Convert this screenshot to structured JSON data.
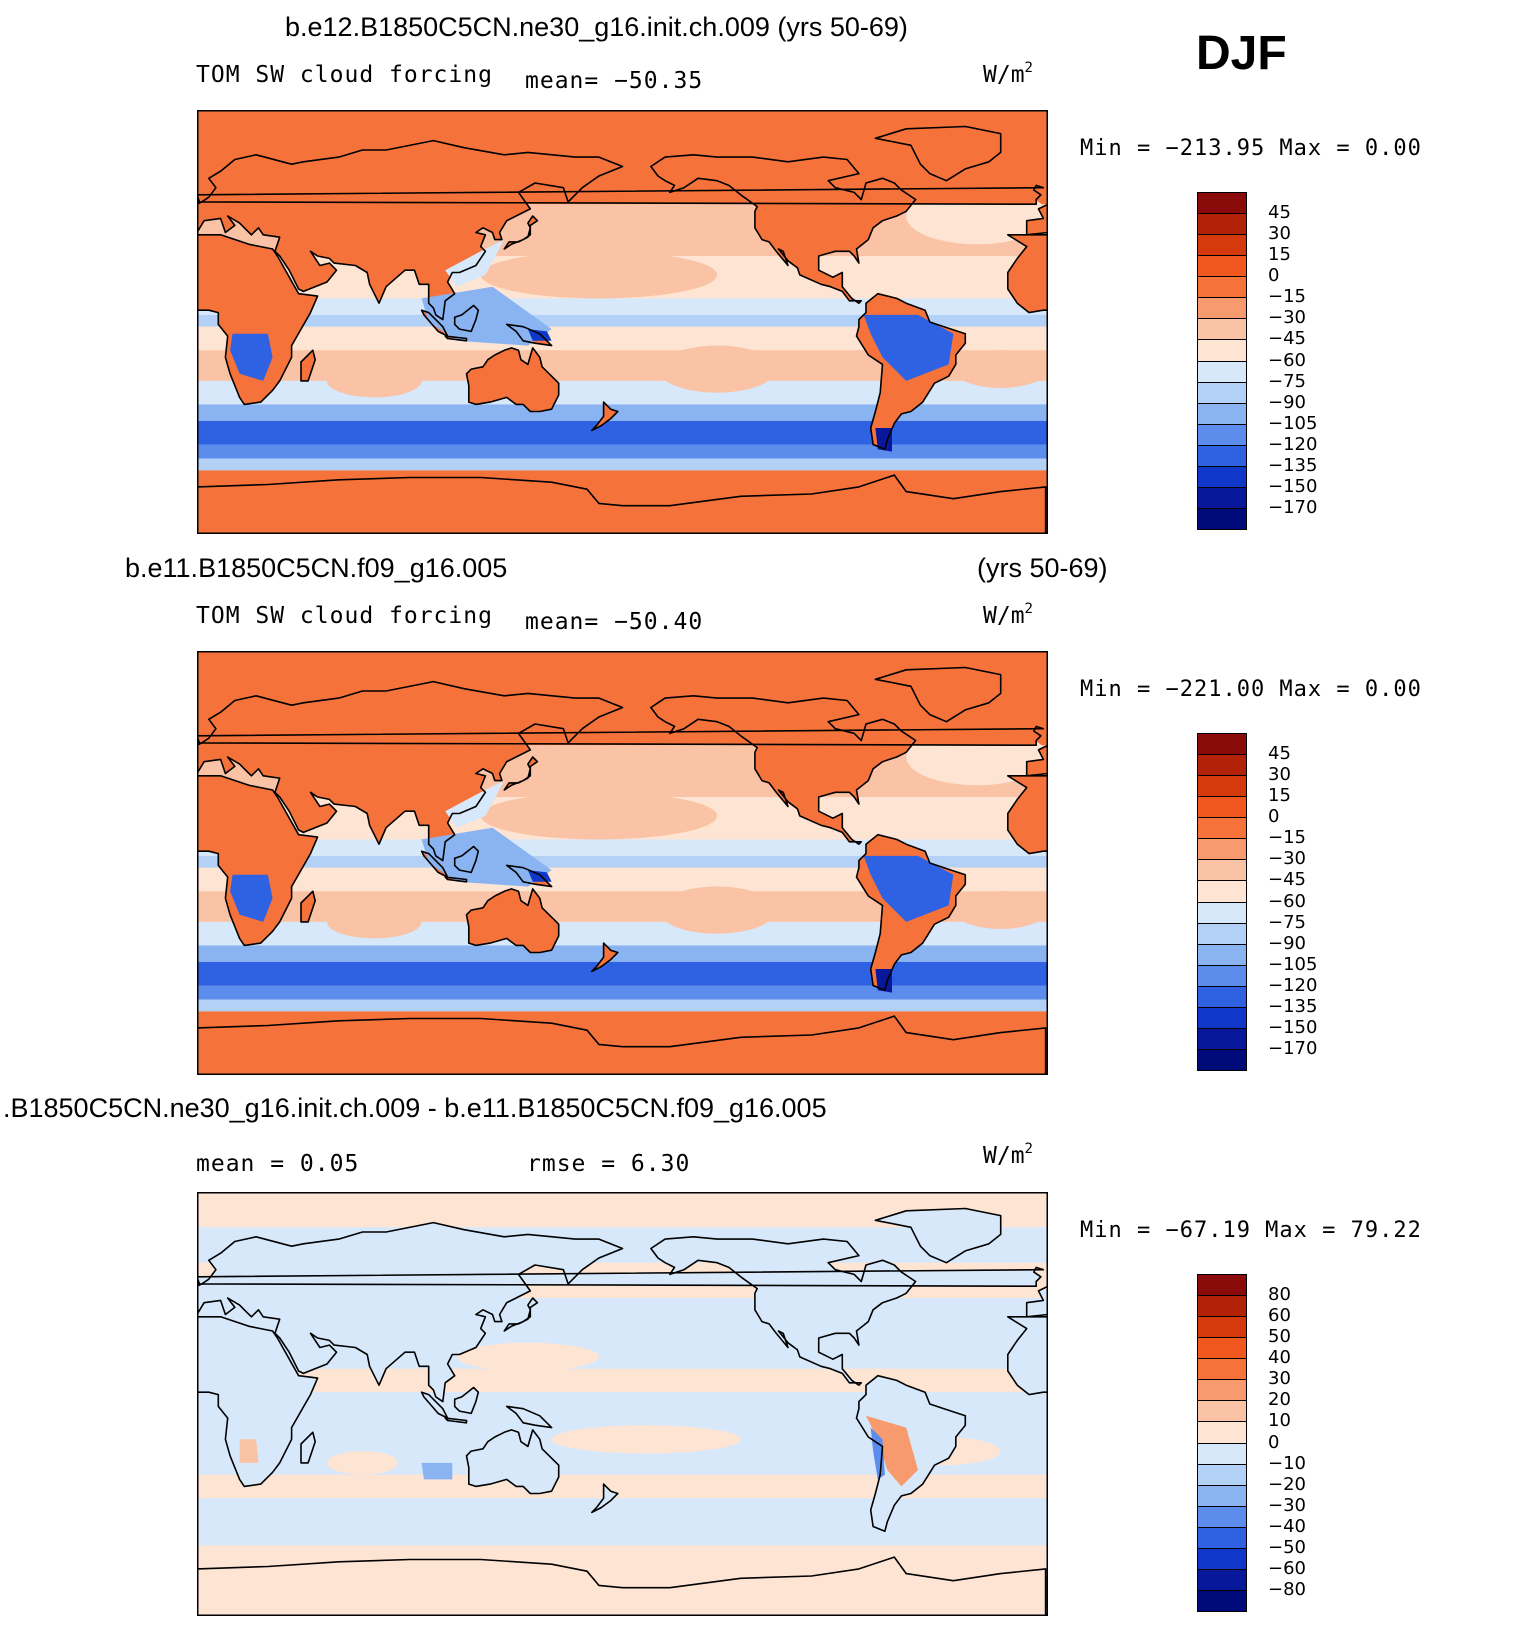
{
  "season": "DJF",
  "panels": [
    {
      "title_left": "b.e12.B1850C5CN.ne30_g16.init.ch.009 (yrs 50-69)",
      "title_right": "",
      "subtitle_left": "TOM SW cloud forcing",
      "stat1": "mean= −50.35",
      "stat2": "",
      "units": "W/m",
      "units_sup": "2",
      "minmax": "Min = −213.95 Max =   0.00",
      "colorbar_labels": [
        "45",
        "30",
        "15",
        "0",
        "−15",
        "−30",
        "−45",
        "−60",
        "−75",
        "−90",
        "−105",
        "−120",
        "−135",
        "−150",
        "−170"
      ],
      "colorbar_colors": [
        "#8b0a0a",
        "#b32207",
        "#d43a0d",
        "#f0581f",
        "#f5733b",
        "#f79a6e",
        "#fbc3a5",
        "#fde4d3",
        "#d7e8fb",
        "#b3d1f6",
        "#8ab3f2",
        "#5c8cec",
        "#2f62e2",
        "#1038c8",
        "#08189a",
        "#000b7a"
      ],
      "map_style": "model"
    },
    {
      "title_left": "b.e11.B1850C5CN.f09_g16.005",
      "title_right": "(yrs 50-69)",
      "subtitle_left": "TOM SW cloud forcing",
      "stat1": "mean= −50.40",
      "stat2": "",
      "units": "W/m",
      "units_sup": "2",
      "minmax": "Min = −221.00 Max =   0.00",
      "colorbar_labels": [
        "45",
        "30",
        "15",
        "0",
        "−15",
        "−30",
        "−45",
        "−60",
        "−75",
        "−90",
        "−105",
        "−120",
        "−135",
        "−150",
        "−170"
      ],
      "colorbar_colors": [
        "#8b0a0a",
        "#b32207",
        "#d43a0d",
        "#f0581f",
        "#f5733b",
        "#f79a6e",
        "#fbc3a5",
        "#fde4d3",
        "#d7e8fb",
        "#b3d1f6",
        "#8ab3f2",
        "#5c8cec",
        "#2f62e2",
        "#1038c8",
        "#08189a",
        "#000b7a"
      ],
      "map_style": "model"
    },
    {
      "title_left": ".B1850C5CN.ne30_g16.init.ch.009 - b.e11.B1850C5CN.f09_g16.005",
      "title_right": "",
      "subtitle_left": "mean =    0.05",
      "stat1": "",
      "stat2": "rmse =    6.30",
      "units": "W/m",
      "units_sup": "2",
      "minmax": "Min = −67.19 Max =  79.22",
      "colorbar_labels": [
        "80",
        "60",
        "50",
        "40",
        "30",
        "20",
        "10",
        "0",
        "−10",
        "−20",
        "−30",
        "−40",
        "−50",
        "−60",
        "−80"
      ],
      "colorbar_colors": [
        "#8b0a0a",
        "#b32207",
        "#d43a0d",
        "#f0581f",
        "#f5733b",
        "#f79a6e",
        "#fbc3a5",
        "#fde4d3",
        "#d7e8fb",
        "#b3d1f6",
        "#8ab3f2",
        "#5c8cec",
        "#2f62e2",
        "#1038c8",
        "#08189a",
        "#000b7a"
      ],
      "map_style": "diff"
    }
  ]
}
